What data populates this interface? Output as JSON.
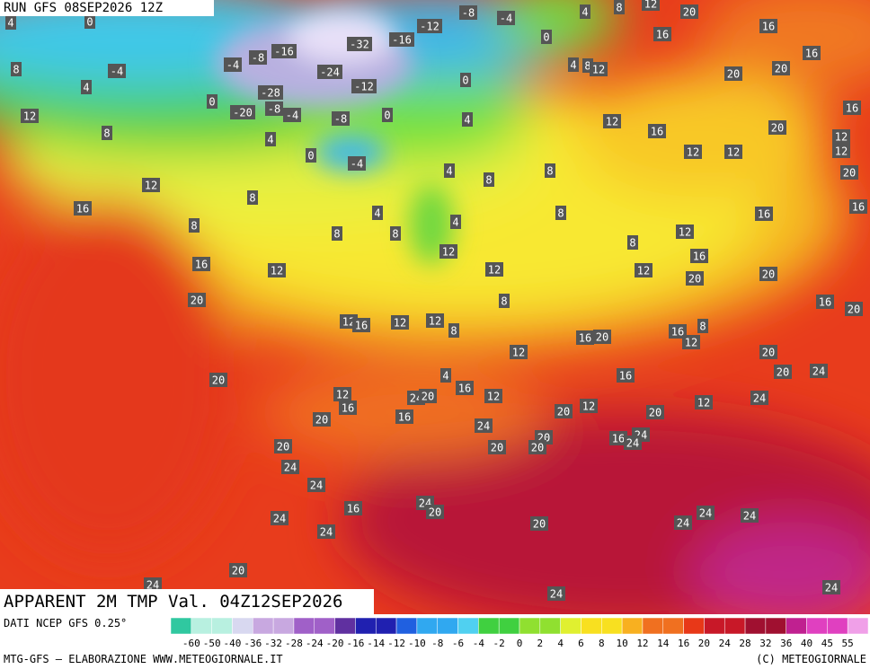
{
  "header": {
    "run": "RUN GFS 08SEP2026 12Z",
    "product": "APPARENT 2M TMP Val. 04Z12SEP2026"
  },
  "map": {
    "labels": [
      4,
      0,
      -8,
      -4,
      -12,
      -16,
      -32,
      4,
      8,
      12,
      20,
      16,
      0,
      16,
      8,
      -4,
      -4,
      -8,
      -16,
      4,
      8,
      12,
      16,
      -24,
      20,
      20,
      4,
      0,
      -12,
      -28,
      0,
      12,
      -8,
      -20,
      -4,
      -8,
      0,
      4,
      12,
      16,
      8,
      16,
      20,
      12,
      4,
      0,
      -4,
      12,
      12,
      12,
      20,
      4,
      8,
      8,
      12,
      8,
      16,
      4,
      4,
      16,
      8,
      16,
      8,
      8,
      8,
      12,
      8,
      12,
      16,
      12,
      12,
      16,
      12,
      20,
      20,
      20,
      8,
      16,
      20,
      12,
      12,
      12,
      16,
      8,
      16,
      20,
      16,
      8,
      12,
      12,
      20,
      20,
      24,
      4,
      16,
      20,
      16,
      12,
      12,
      24,
      20,
      24,
      12,
      16,
      20,
      12,
      20,
      16,
      20,
      24,
      20,
      16,
      24,
      24,
      20,
      20,
      20,
      24,
      24,
      24,
      20,
      16,
      24,
      20,
      24,
      24,
      24,
      24,
      20,
      24,
      24,
      24
    ]
  },
  "footer": {
    "source": "DATI NCEP GFS 0.25°",
    "credit": "MTG-GFS — ELABORAZIONE WWW.METEOGIORNALE.IT",
    "copyright": "(C) METEOGIORNALE"
  },
  "colorbar": {
    "ticks": [
      -60,
      -50,
      -40,
      -36,
      -32,
      -28,
      -24,
      -20,
      -16,
      -14,
      -12,
      -10,
      -8,
      -6,
      -4,
      -2,
      0,
      2,
      4,
      6,
      8,
      10,
      12,
      14,
      16,
      20,
      24,
      28,
      32,
      36,
      40,
      45,
      55
    ]
  }
}
